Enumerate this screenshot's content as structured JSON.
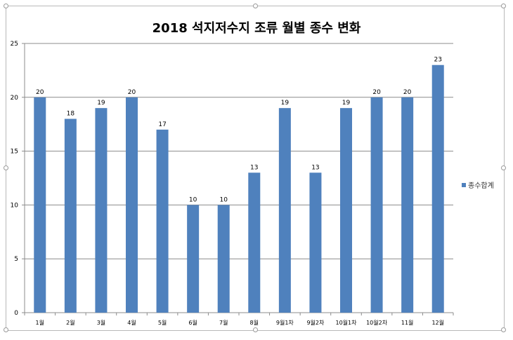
{
  "chart_data": {
    "type": "bar",
    "title": "2018 석지저수지 조류 월별 종수 변화",
    "categories": [
      "1월",
      "2월",
      "3월",
      "4월",
      "5월",
      "6월",
      "7월",
      "8월",
      "9월1차",
      "9월2차",
      "10월1차",
      "10월2차",
      "11월",
      "12월"
    ],
    "series": [
      {
        "name": "종수합계",
        "values": [
          20,
          18,
          19,
          20,
          17,
          10,
          10,
          13,
          19,
          13,
          19,
          20,
          20,
          23
        ]
      }
    ],
    "ylim": [
      0,
      25
    ],
    "yticks": [
      0,
      5,
      10,
      15,
      20,
      25
    ],
    "xlabel": "",
    "ylabel": "",
    "grid": true,
    "legend_position": "right",
    "colors": {
      "bar": "#4f81bd",
      "grid": "#8c8c8c",
      "axis": "#8c8c8c"
    }
  }
}
